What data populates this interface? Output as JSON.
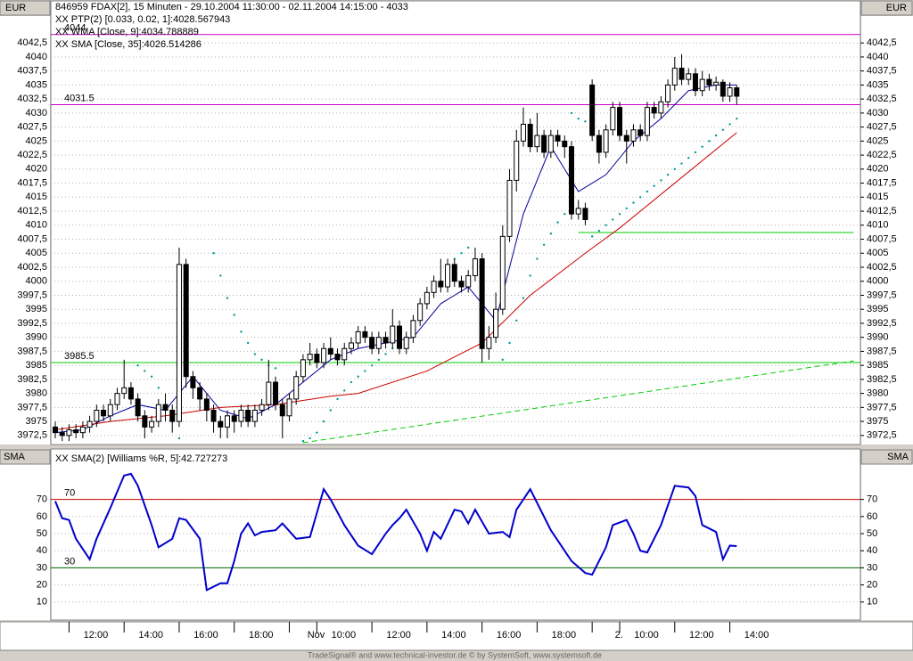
{
  "chart_data": [
    {
      "type": "candlestick",
      "title": "846959  FDAX[2], 15 Minuten - 29.10.2004 11:30:00 - 02.11.2004 14:15:00 - 4033",
      "y_label": "EUR",
      "categories": [
        null,
        null,
        "12:00",
        null,
        null,
        null,
        null,
        null,
        null,
        null,
        "14:00",
        null,
        null,
        null,
        null,
        null,
        null,
        null,
        "16:00",
        null,
        null,
        null,
        null,
        null,
        null,
        null,
        "18:00",
        null,
        null,
        null,
        null,
        null,
        null,
        null,
        "Nov",
        null,
        null,
        null,
        "10:00",
        null,
        null,
        null,
        null,
        null,
        null,
        null,
        "12:00",
        null,
        null,
        null,
        null,
        null,
        null,
        null,
        "14:00",
        null,
        null,
        null,
        null,
        null,
        null,
        null,
        "16:00",
        null,
        null,
        null,
        null,
        null,
        null,
        null,
        "18:00",
        null,
        null,
        null,
        null,
        null,
        null,
        null,
        "2.",
        null,
        null,
        null,
        "10:00",
        null,
        null,
        null,
        null,
        null,
        null,
        null,
        "12:00",
        null,
        null,
        null,
        null,
        null,
        null,
        null,
        "14:00",
        null
      ],
      "open": [
        3974,
        3973,
        3972.5,
        3973.5,
        3973,
        3974,
        3975,
        3977,
        3976,
        3978,
        3980,
        3981,
        3979,
        3976,
        3974,
        3975,
        3978,
        3977,
        3975,
        4003,
        3983,
        3981,
        3979,
        3977,
        3975,
        3974,
        3976,
        3975,
        3977,
        3975,
        3977,
        3978,
        3982,
        3978,
        3976,
        3979,
        3983,
        3986,
        3987,
        3985.5,
        3988,
        3987,
        3986,
        3988,
        3989,
        3991,
        3990,
        3988,
        3990,
        3989,
        3992,
        3988,
        3990,
        3993,
        3996,
        3998,
        4000,
        3999,
        4003,
        4000,
        3999,
        4001,
        4004,
        3988,
        3990,
        3995,
        4008,
        4018,
        4025,
        4028,
        4024,
        4026,
        4023,
        4026,
        4025,
        4024,
        4012,
        4013,
        4035,
        4026,
        4023,
        4027,
        4031,
        4026,
        4025,
        4027,
        4026,
        4031,
        4030,
        4032,
        4035,
        4038,
        4036,
        4037,
        4034,
        4036,
        4035,
        4035.5,
        4033,
        4034.5
      ],
      "high": [
        3975,
        3974,
        3974.5,
        3974.5,
        3975,
        3976,
        3978,
        3978,
        3979,
        3981,
        3986,
        3982,
        3980,
        3977,
        3976,
        3979,
        3980,
        3978,
        4006,
        4004,
        3984,
        3982,
        3980,
        3978,
        3976,
        3977,
        3977,
        3978,
        3978,
        3978,
        3979,
        3986,
        3983,
        3979,
        3980,
        3984,
        3987,
        3989,
        3988,
        3989,
        3990,
        3988,
        3989,
        3990,
        3992,
        3992,
        3991,
        3991,
        3991,
        3995,
        3993,
        3991,
        3994,
        3997,
        3999,
        4001,
        4004,
        4004,
        4004,
        4001,
        4002,
        4006,
        4005,
        3992,
        3998,
        4010,
        4020,
        4027,
        4031,
        4029,
        4030,
        4027,
        4027,
        4027,
        4026,
        4025,
        4014.5,
        4014,
        4036,
        4027,
        4028,
        4032,
        4032,
        4027,
        4028,
        4028,
        4032,
        4032,
        4033,
        4036,
        4040,
        4040.5,
        4038,
        4038,
        4037.5,
        4037,
        4036.5,
        4036,
        4035.5,
        4035
      ],
      "low": [
        3972,
        3971.5,
        3971.5,
        3972,
        3972,
        3973,
        3974,
        3975,
        3975,
        3977,
        3979,
        3978,
        3975,
        3972,
        3973,
        3974,
        3975,
        3973,
        3974,
        3981,
        3979,
        3977,
        3975,
        3973,
        3972,
        3972,
        3973,
        3974,
        3974,
        3974,
        3976,
        3977,
        3977,
        3972,
        3975,
        3978,
        3982,
        3985,
        3984.5,
        3984.5,
        3986,
        3985,
        3985,
        3987,
        3988,
        3989,
        3987,
        3987,
        3988,
        3988,
        3987,
        3987,
        3989,
        3992,
        3995,
        3997,
        3998,
        3998,
        3999,
        3998,
        3998,
        4000,
        3985.5,
        3986,
        3989,
        3994,
        4007,
        4016,
        4024,
        4023,
        4023,
        4022,
        4022,
        4024,
        4022,
        4011,
        4011,
        4010,
        4025,
        4021,
        4022,
        4026,
        4025,
        4021,
        4024,
        4025,
        4025,
        4029,
        4029,
        4031,
        4034,
        4035,
        4035,
        4033,
        4033,
        4034,
        4034,
        4032,
        4032,
        4031.5
      ],
      "close": [
        3973,
        3972.5,
        3973.5,
        3973,
        3974,
        3975,
        3977,
        3976,
        3978,
        3980,
        3981,
        3979,
        3976,
        3974,
        3975,
        3978,
        3977,
        3975,
        4003,
        3983,
        3981,
        3979,
        3977,
        3975,
        3974,
        3976,
        3975,
        3977,
        3975,
        3977,
        3978,
        3982,
        3978,
        3976,
        3979,
        3983,
        3986,
        3987,
        3985.5,
        3988,
        3987,
        3986,
        3988,
        3989,
        3991,
        3990,
        3988,
        3990,
        3989,
        3992,
        3988,
        3990,
        3993,
        3996,
        3998,
        4000,
        3999,
        4003,
        4000,
        3999,
        4001,
        4004,
        3988,
        3990,
        3995,
        4008,
        4018,
        4025,
        4028,
        4024,
        4026,
        4023,
        4026,
        4025,
        4024,
        4012,
        4013,
        4011,
        4026,
        4023,
        4027,
        4031,
        4026,
        4025,
        4027,
        4026,
        4031,
        4030,
        4032,
        4035,
        4038,
        4036,
        4037,
        4034,
        4036,
        4035,
        4035.5,
        4033,
        4034.5,
        4033
      ],
      "series": [
        {
          "name": "XX PTP(2) [0.033, 0.02, 1]:4028.567943",
          "color": "#009999",
          "style": "dots",
          "values": [
            null,
            null,
            null,
            null,
            null,
            null,
            null,
            null,
            null,
            null,
            null,
            null,
            3985,
            3984,
            3983,
            3981,
            3978,
            3975,
            3972,
            null,
            null,
            null,
            null,
            4005,
            4001,
            3997,
            3994,
            3991,
            3989,
            3987,
            3986,
            3985,
            3984.5,
            null,
            null,
            null,
            3971.5,
            3972,
            3973,
            3975,
            3977,
            3979,
            3980.5,
            3982,
            3983,
            3984,
            3985,
            3986,
            3987,
            3988,
            3989,
            3990,
            3992,
            3994,
            3996,
            3998,
            4000,
            4002,
            4004,
            4005,
            4006,
            null,
            null,
            null,
            null,
            3986,
            3989,
            3993,
            3997,
            4001,
            4004,
            4006.5,
            4008.5,
            4010.5,
            4012,
            4030,
            4029,
            4028.5,
            4008,
            4009,
            4010,
            4011,
            4012,
            4013,
            4014,
            4015,
            4016,
            4017,
            4018,
            4019,
            4020,
            4021,
            4022,
            4023,
            4024,
            4025,
            4026,
            4027,
            4028,
            4029
          ]
        },
        {
          "name": "XX WMA [Close, 9]:4034.788889",
          "color": "#000099",
          "style": "line",
          "x": [
            0,
            4,
            8,
            12,
            16,
            20,
            24,
            28,
            32,
            36,
            40,
            44,
            48,
            52,
            56,
            60,
            64,
            68,
            72,
            76,
            80,
            84,
            88,
            92,
            96,
            99
          ],
          "values": [
            3973,
            3973.5,
            3976,
            3978,
            3977,
            3983,
            3977,
            3975.5,
            3978,
            3982,
            3986,
            3988,
            3989,
            3990,
            3996,
            3999,
            3993,
            4012,
            4024,
            4016,
            4019,
            4025,
            4029,
            4034,
            4035,
            4035
          ]
        },
        {
          "name": "XX SMA [Close, 35]:4026.514286",
          "color": "#cc0000",
          "style": "line",
          "x": [
            0,
            8,
            16,
            24,
            32,
            40,
            44,
            54,
            62,
            69,
            77,
            82,
            90,
            99
          ],
          "values": [
            3973.5,
            3975,
            3976,
            3977.5,
            3978,
            3979.5,
            3980,
            3984,
            3989,
            3997.5,
            4005,
            4009.5,
            4017.5,
            4026.5
          ]
        }
      ],
      "levels": [
        {
          "value": 4044,
          "color": "#cc00cc"
        },
        {
          "value": 4031.5,
          "color": "#cc00cc"
        },
        {
          "value": 3985.5,
          "color": "#00cc00"
        }
      ],
      "lines": [
        {
          "color": "#00cc00",
          "dashed": false,
          "x": [
            76,
            116
          ],
          "values": [
            4008.7,
            4008.7
          ]
        },
        {
          "color": "#00cc00",
          "dashed": true,
          "x": [
            36,
            116
          ],
          "values": [
            3971.2,
            3985.8
          ]
        }
      ],
      "ylim": [
        3971.2,
        4047.3
      ],
      "yticks": [
        {
          "value": 3972.5,
          "label": "3972,5"
        },
        3975,
        {
          "value": 3977.5,
          "label": "3977,5"
        },
        3980,
        {
          "value": 3982.5,
          "label": "3982,5"
        },
        3985,
        {
          "value": 3987.5,
          "label": "3987,5"
        },
        3990,
        {
          "value": 3992.5,
          "label": "3992,5"
        },
        3995,
        {
          "value": 3997.5,
          "label": "3997,5"
        },
        4000,
        {
          "value": 4002.5,
          "label": "4002,5"
        },
        4005,
        {
          "value": 4007.5,
          "label": "4007,5"
        },
        4010,
        {
          "value": 4012.5,
          "label": "4012,5"
        },
        4015,
        {
          "value": 4017.5,
          "label": "4017,5"
        },
        4020,
        {
          "value": 4022.5,
          "label": "4022,5"
        },
        4025,
        {
          "value": 4027.5,
          "label": "4027,5"
        },
        4030,
        {
          "value": 4032.5,
          "label": "4032,5"
        },
        4035,
        {
          "value": 4037.5,
          "label": "4037,5"
        },
        4040,
        {
          "value": 4042.5,
          "label": "4042,5"
        }
      ],
      "grid": true
    },
    {
      "type": "line",
      "y_label": "SMA",
      "series": [
        {
          "name": "XX SMA(2) [Williams %R, 5]:42.727273",
          "color": "#0000cc",
          "x": [
            0,
            1,
            2,
            3,
            5,
            6,
            8,
            10,
            11,
            12,
            14,
            15,
            17,
            18,
            19,
            21,
            22,
            24,
            25,
            26,
            27,
            28,
            29,
            30,
            32,
            33,
            35,
            37,
            39,
            40,
            42,
            44,
            46,
            48,
            49,
            50,
            51,
            53,
            54,
            55,
            56,
            58,
            59,
            60,
            61,
            63,
            65,
            66,
            67,
            69,
            70,
            72,
            75,
            77,
            78,
            80,
            81,
            83,
            84,
            85,
            86,
            88,
            90,
            92,
            93,
            94,
            96,
            97,
            98,
            99
          ],
          "values": [
            69,
            59,
            58,
            47,
            35,
            47,
            65,
            84,
            85,
            78,
            55,
            42,
            47,
            59,
            58,
            47,
            17,
            21,
            21,
            34,
            50,
            56,
            49,
            51,
            52,
            56,
            47,
            48,
            76,
            70,
            55,
            43,
            38,
            50,
            55,
            59,
            64,
            50,
            40,
            51,
            47,
            64,
            63,
            56,
            64,
            50,
            51,
            48,
            64,
            76,
            68,
            52,
            34,
            27,
            26,
            42,
            55,
            58,
            50,
            40,
            39,
            55,
            78,
            77,
            72,
            55,
            51,
            35,
            43,
            42.7
          ]
        }
      ],
      "levels": [
        {
          "value": 70,
          "color": "#cc0000"
        },
        {
          "value": 30,
          "color": "#006600"
        }
      ],
      "ylim": [
        0,
        99
      ],
      "yticks": [
        10,
        20,
        30,
        40,
        50,
        60,
        70
      ],
      "grid": true
    }
  ],
  "footer": "TradeSignal® and www.technical-investor.de © by SystemSoft, www.systemsoft.de"
}
